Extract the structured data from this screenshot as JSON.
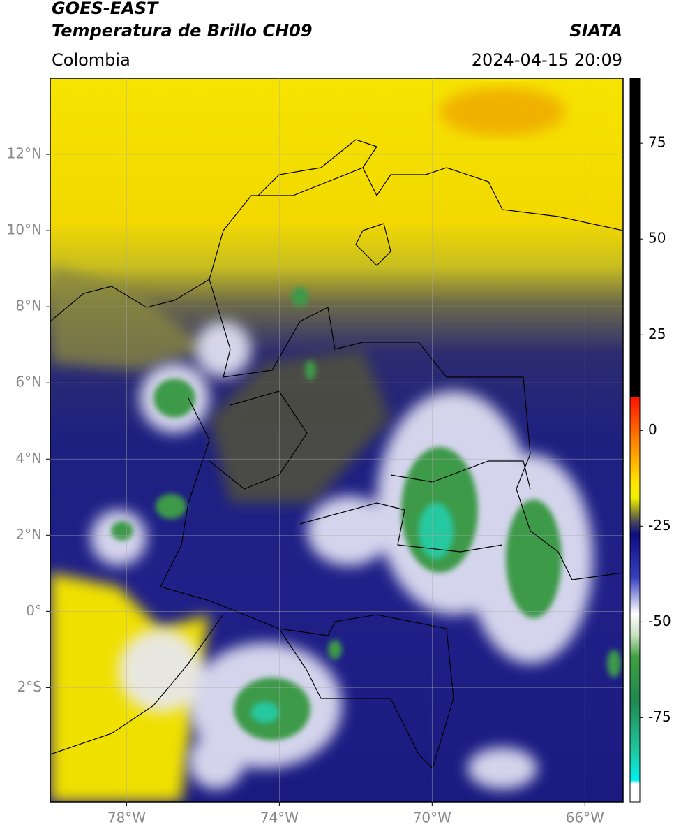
{
  "header": {
    "title": "GOES-EAST",
    "subtitle": "Temperatura de Brillo CH09",
    "source": "SIATA",
    "region": "Colombia",
    "timestamp": "2024-04-15 20:09"
  },
  "map": {
    "xlim": [
      -80,
      -65
    ],
    "ylim": [
      -5,
      14
    ],
    "xticks": [
      {
        "value": -78,
        "label": "78°W"
      },
      {
        "value": -74,
        "label": "74°W"
      },
      {
        "value": -70,
        "label": "70°W"
      },
      {
        "value": -66,
        "label": "66°W"
      }
    ],
    "yticks": [
      {
        "value": 12,
        "label": "12°N"
      },
      {
        "value": 10,
        "label": "10°N"
      },
      {
        "value": 8,
        "label": "8°N"
      },
      {
        "value": 6,
        "label": "6°N"
      },
      {
        "value": 4,
        "label": "4°N"
      },
      {
        "value": 2,
        "label": "2°N"
      },
      {
        "value": 0,
        "label": "0°"
      },
      {
        "value": -2,
        "label": "2°S"
      }
    ],
    "grid": true
  },
  "colorbar": {
    "ylim": [
      -97,
      92
    ],
    "yticks": [
      75,
      50,
      25,
      0,
      -25,
      -50,
      -75
    ]
  }
}
